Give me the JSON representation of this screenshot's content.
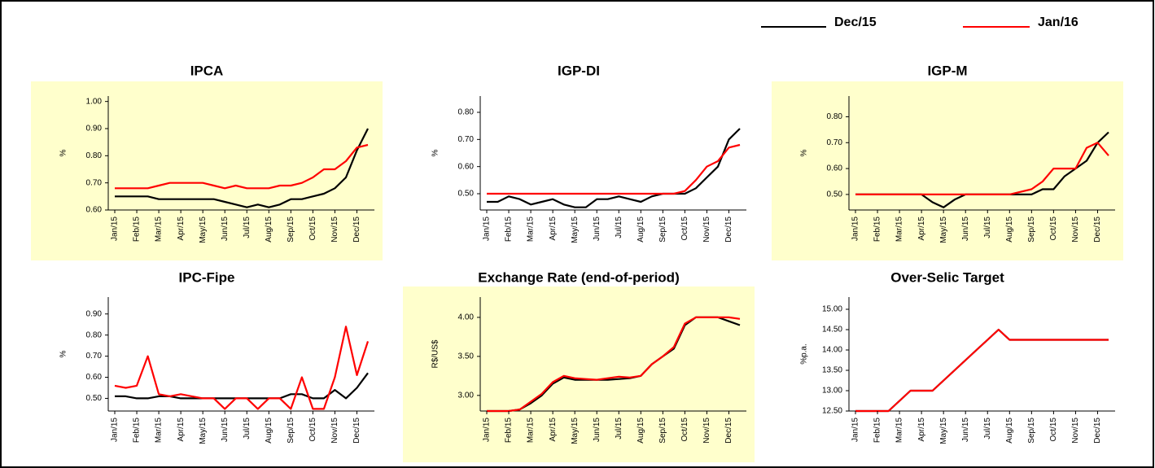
{
  "chart_data": [
    {
      "type": "line",
      "title": "IPCA",
      "ylabel": "%",
      "background": "#ffffcc",
      "categories": [
        "Jan/15",
        null,
        "Feb/15",
        null,
        "Mar/15",
        null,
        "Apr/15",
        null,
        "May/15",
        null,
        "Jun/15",
        null,
        "Jul/15",
        null,
        "Aug/15",
        null,
        "Sep/15",
        null,
        "Oct/15",
        null,
        "Nov/15",
        null,
        "Dec/15",
        null
      ],
      "series": [
        {
          "name": "Dec/15",
          "color": "#000000",
          "values": [
            0.65,
            0.65,
            0.65,
            0.65,
            0.64,
            0.64,
            0.64,
            0.64,
            0.64,
            0.64,
            0.63,
            0.62,
            0.61,
            0.62,
            0.61,
            0.62,
            0.64,
            0.64,
            0.65,
            0.66,
            0.68,
            0.72,
            0.82,
            0.9
          ]
        },
        {
          "name": "Jan/16",
          "color": "#ff0000",
          "values": [
            0.68,
            0.68,
            0.68,
            0.68,
            0.69,
            0.7,
            0.7,
            0.7,
            0.7,
            0.69,
            0.68,
            0.69,
            0.68,
            0.68,
            0.68,
            0.69,
            0.69,
            0.7,
            0.72,
            0.75,
            0.75,
            0.78,
            0.83,
            0.84
          ]
        }
      ],
      "ylim": [
        0.6,
        1.02
      ],
      "yticks": [
        {
          "value": 0.6,
          "label": "0.60"
        },
        {
          "value": 0.7,
          "label": "0.70"
        },
        {
          "value": 0.8,
          "label": "0.80"
        },
        {
          "value": 0.9,
          "label": "0.90"
        },
        {
          "value": 1.0,
          "label": "1.00"
        }
      ]
    },
    {
      "type": "line",
      "title": "IGP-DI",
      "ylabel": "%",
      "categories": [
        "Jan/15",
        null,
        "Feb/15",
        null,
        "Mar/15",
        null,
        "Apr/15",
        null,
        "May/15",
        null,
        "Jun/15",
        null,
        "Jul/15",
        null,
        "Aug/15",
        null,
        "Sep/15",
        null,
        "Oct/15",
        null,
        "Nov/15",
        null,
        "Dec/15",
        null
      ],
      "series": [
        {
          "color": "#000000",
          "values": [
            0.47,
            0.47,
            0.49,
            0.48,
            0.46,
            0.47,
            0.48,
            0.46,
            0.45,
            0.45,
            0.48,
            0.48,
            0.49,
            0.48,
            0.47,
            0.49,
            0.5,
            0.5,
            0.5,
            0.52,
            0.56,
            0.6,
            0.7,
            0.74
          ]
        },
        {
          "color": "#ff0000",
          "values": [
            0.5,
            0.5,
            0.5,
            0.5,
            0.5,
            0.5,
            0.5,
            0.5,
            0.5,
            0.5,
            0.5,
            0.5,
            0.5,
            0.5,
            0.5,
            0.5,
            0.5,
            0.5,
            0.51,
            0.55,
            0.6,
            0.62,
            0.67,
            0.68
          ]
        }
      ],
      "ylim": [
        0.44,
        0.86
      ],
      "yticks": [
        {
          "value": 0.5,
          "label": "0.50"
        },
        {
          "value": 0.6,
          "label": "0.60"
        },
        {
          "value": 0.7,
          "label": "0.70"
        },
        {
          "value": 0.8,
          "label": "0.80"
        }
      ]
    },
    {
      "type": "line",
      "title": "IGP-M",
      "ylabel": "%",
      "background": "#ffffcc",
      "categories": [
        "Jan/15",
        null,
        "Feb/15",
        null,
        "Mar/15",
        null,
        "Apr/15",
        null,
        "May/15",
        null,
        "Jun/15",
        null,
        "Jul/15",
        null,
        "Aug/15",
        null,
        "Sep/15",
        null,
        "Oct/15",
        null,
        "Nov/15",
        null,
        "Dec/15",
        null
      ],
      "series": [
        {
          "color": "#000000",
          "values": [
            0.5,
            0.5,
            0.5,
            0.5,
            0.5,
            0.5,
            0.5,
            0.47,
            0.45,
            0.48,
            0.5,
            0.5,
            0.5,
            0.5,
            0.5,
            0.5,
            0.5,
            0.52,
            0.52,
            0.57,
            0.6,
            0.63,
            0.7,
            0.74
          ]
        },
        {
          "color": "#ff0000",
          "values": [
            0.5,
            0.5,
            0.5,
            0.5,
            0.5,
            0.5,
            0.5,
            0.5,
            0.5,
            0.5,
            0.5,
            0.5,
            0.5,
            0.5,
            0.5,
            0.51,
            0.52,
            0.55,
            0.6,
            0.6,
            0.6,
            0.68,
            0.7,
            0.65
          ]
        }
      ],
      "ylim": [
        0.44,
        0.88
      ],
      "yticks": [
        {
          "value": 0.5,
          "label": "0.50"
        },
        {
          "value": 0.6,
          "label": "0.60"
        },
        {
          "value": 0.7,
          "label": "0.70"
        },
        {
          "value": 0.8,
          "label": "0.80"
        }
      ]
    },
    {
      "type": "line",
      "title": "IPC-Fipe",
      "ylabel": "%",
      "categories": [
        "Jan/15",
        null,
        "Feb/15",
        null,
        "Mar/15",
        null,
        "Apr/15",
        null,
        "May/15",
        null,
        "Jun/15",
        null,
        "Jul/15",
        null,
        "Aug/15",
        null,
        "Sep/15",
        null,
        "Oct/15",
        null,
        "Nov/15",
        null,
        "Dec/15",
        null
      ],
      "series": [
        {
          "color": "#000000",
          "values": [
            0.51,
            0.51,
            0.5,
            0.5,
            0.51,
            0.51,
            0.5,
            0.5,
            0.5,
            0.5,
            0.5,
            0.5,
            0.5,
            0.5,
            0.5,
            0.5,
            0.52,
            0.52,
            0.5,
            0.5,
            0.54,
            0.5,
            0.55,
            0.62
          ]
        },
        {
          "color": "#ff0000",
          "values": [
            0.56,
            0.55,
            0.56,
            0.7,
            0.52,
            0.51,
            0.52,
            0.51,
            0.5,
            0.5,
            0.45,
            0.5,
            0.5,
            0.45,
            0.5,
            0.5,
            0.45,
            0.6,
            0.45,
            0.45,
            0.6,
            0.84,
            0.61,
            0.77
          ]
        }
      ],
      "ylim": [
        0.44,
        0.98
      ],
      "yticks": [
        {
          "value": 0.5,
          "label": "0.50"
        },
        {
          "value": 0.6,
          "label": "0.60"
        },
        {
          "value": 0.7,
          "label": "0.70"
        },
        {
          "value": 0.8,
          "label": "0.80"
        },
        {
          "value": 0.9,
          "label": "0.90"
        }
      ]
    },
    {
      "type": "line",
      "title": "Exchange Rate (end-of-period)",
      "ylabel": "R$/US$",
      "background": "#ffffcc",
      "categories": [
        "Jan/15",
        null,
        "Feb/15",
        null,
        "Mar/15",
        null,
        "Apr/15",
        null,
        "May/15",
        null,
        "Jun/15",
        null,
        "Jul/15",
        null,
        "Aug/15",
        null,
        "Sep/15",
        null,
        "Oct/15",
        null,
        "Nov/15",
        null,
        "Dec/15",
        null
      ],
      "series": [
        {
          "color": "#000000",
          "values": [
            2.8,
            2.8,
            2.8,
            2.82,
            2.9,
            3.0,
            3.15,
            3.23,
            3.2,
            3.2,
            3.2,
            3.2,
            3.21,
            3.22,
            3.25,
            3.4,
            3.5,
            3.6,
            3.9,
            4.0,
            4.0,
            4.0,
            3.95,
            3.9
          ]
        },
        {
          "color": "#ff0000",
          "values": [
            2.8,
            2.8,
            2.8,
            2.82,
            2.92,
            3.02,
            3.17,
            3.25,
            3.22,
            3.21,
            3.2,
            3.22,
            3.24,
            3.23,
            3.25,
            3.4,
            3.5,
            3.62,
            3.92,
            4.0,
            4.0,
            4.0,
            4.0,
            3.98
          ]
        }
      ],
      "ylim": [
        2.8,
        4.26
      ],
      "yticks": [
        {
          "value": 3.0,
          "label": "3.00"
        },
        {
          "value": 3.5,
          "label": "3.50"
        },
        {
          "value": 4.0,
          "label": "4.00"
        }
      ]
    },
    {
      "type": "line",
      "title": "Over-Selic Target",
      "ylabel": "%p.a.",
      "categories": [
        "Jan/15",
        null,
        "Feb/15",
        null,
        "Mar/15",
        null,
        "Apr/15",
        null,
        "May/15",
        null,
        "Jun/15",
        null,
        "Jul/15",
        null,
        "Aug/15",
        null,
        "Sep/15",
        null,
        "Oct/15",
        null,
        "Nov/15",
        null,
        "Dec/15",
        null
      ],
      "series": [
        {
          "color": "#000000",
          "values": [
            12.5,
            12.5,
            12.5,
            12.5,
            12.75,
            13.0,
            13.0,
            13.0,
            13.25,
            13.5,
            13.75,
            14.0,
            14.25,
            14.5,
            14.25,
            14.25,
            14.25,
            14.25,
            14.25,
            14.25,
            14.25,
            14.25,
            14.25,
            14.25
          ]
        },
        {
          "color": "#ff0000",
          "values": [
            12.5,
            12.5,
            12.5,
            12.5,
            12.75,
            13.0,
            13.0,
            13.0,
            13.25,
            13.5,
            13.75,
            14.0,
            14.25,
            14.5,
            14.25,
            14.25,
            14.25,
            14.25,
            14.25,
            14.25,
            14.25,
            14.25,
            14.25,
            14.25
          ]
        }
      ],
      "ylim": [
        12.5,
        15.3
      ],
      "yticks": [
        {
          "value": 12.5,
          "label": "12.50"
        },
        {
          "value": 13.0,
          "label": "13.00"
        },
        {
          "value": 13.5,
          "label": "13.50"
        },
        {
          "value": 14.0,
          "label": "14.00"
        },
        {
          "value": 14.5,
          "label": "14.50"
        },
        {
          "value": 15.0,
          "label": "15.00"
        }
      ]
    }
  ]
}
